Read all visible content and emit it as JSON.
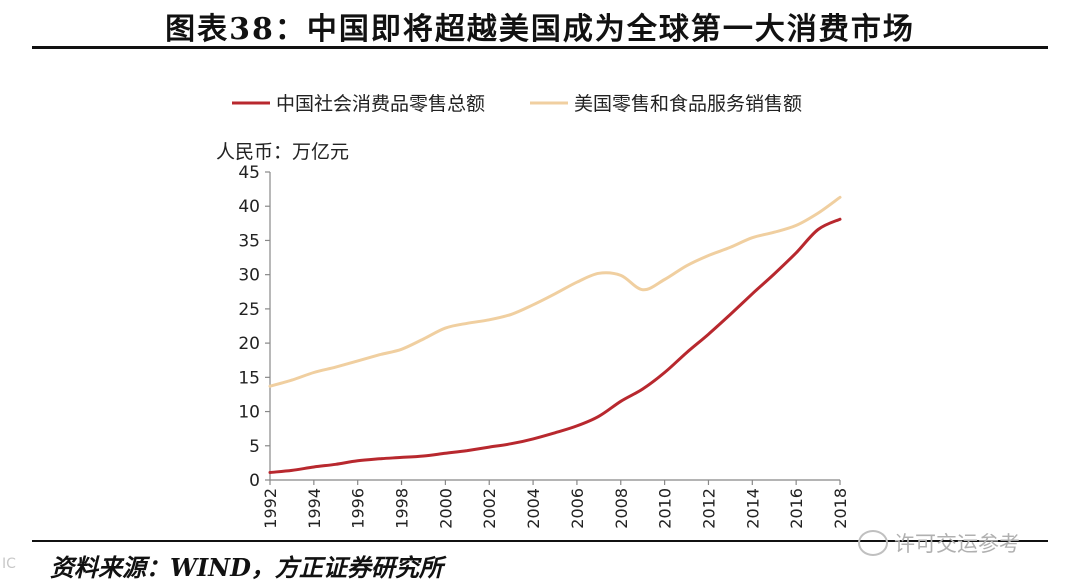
{
  "page": {
    "title": "图表38：中国即将超越美国成为全球第一大消费市场",
    "source": "资料来源：WIND，方正证券研究所",
    "watermark": "许可交运参考",
    "corner_mark": "IC"
  },
  "chart_data": {
    "type": "line",
    "title": "",
    "ylabel": "人民币：万亿元",
    "xlabel": "",
    "ylim": [
      0,
      45
    ],
    "yticks": [
      0,
      5,
      10,
      15,
      20,
      25,
      30,
      35,
      40,
      45
    ],
    "xlim": [
      1992,
      2018
    ],
    "xticks": [
      "1992",
      "1994",
      "1996",
      "1998",
      "2000",
      "2002",
      "2004",
      "2006",
      "2008",
      "2010",
      "2012",
      "2014",
      "2016",
      "2018"
    ],
    "legend": "top",
    "series": [
      {
        "name": "中国社会消费品零售总额",
        "color": "#b8282e",
        "x": [
          1992,
          1993,
          1994,
          1995,
          1996,
          1997,
          1998,
          1999,
          2000,
          2001,
          2002,
          2003,
          2004,
          2005,
          2006,
          2007,
          2008,
          2009,
          2010,
          2011,
          2012,
          2013,
          2014,
          2015,
          2016,
          2017,
          2018
        ],
        "values": [
          1.1,
          1.4,
          1.9,
          2.3,
          2.8,
          3.1,
          3.3,
          3.5,
          3.9,
          4.3,
          4.8,
          5.3,
          6.0,
          6.9,
          7.9,
          9.3,
          11.5,
          13.3,
          15.7,
          18.6,
          21.3,
          24.2,
          27.2,
          30.1,
          33.2,
          36.6,
          38.1
        ]
      },
      {
        "name": "美国零售和食品服务销售额",
        "color": "#f0cfa0",
        "x": [
          1992,
          1993,
          1994,
          1995,
          1996,
          1997,
          1998,
          1999,
          2000,
          2001,
          2002,
          2003,
          2004,
          2005,
          2006,
          2007,
          2008,
          2009,
          2010,
          2011,
          2012,
          2013,
          2014,
          2015,
          2016,
          2017,
          2018
        ],
        "values": [
          13.7,
          14.6,
          15.7,
          16.5,
          17.4,
          18.3,
          19.1,
          20.6,
          22.2,
          22.9,
          23.4,
          24.2,
          25.6,
          27.2,
          28.9,
          30.2,
          29.9,
          27.8,
          29.3,
          31.3,
          32.8,
          34.0,
          35.4,
          36.2,
          37.2,
          39.0,
          41.3
        ]
      }
    ]
  }
}
